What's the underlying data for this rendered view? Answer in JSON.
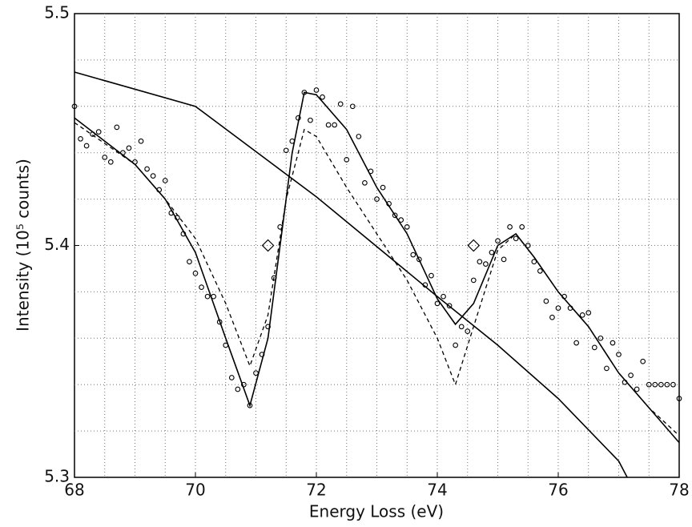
{
  "chart_data": {
    "type": "line",
    "xlabel": "Energy Loss (eV)",
    "ylabel": "Intensity (10⁵ counts)",
    "xlim": [
      68,
      78
    ],
    "ylim": [
      5.3,
      5.5
    ],
    "xticks": [
      68,
      70,
      72,
      74,
      76,
      78
    ],
    "yticks": [
      5.3,
      5.4,
      5.5
    ],
    "xgrid": [
      68.5,
      69,
      69.5,
      70,
      70.5,
      71,
      71.5,
      72,
      72.5,
      73,
      73.5,
      74,
      74.5,
      75,
      75.5,
      76,
      76.5,
      77,
      77.5
    ],
    "ygrid": [
      5.32,
      5.34,
      5.36,
      5.38,
      5.4,
      5.42,
      5.44,
      5.46,
      5.48
    ],
    "grid": true,
    "series": [
      {
        "color": "#000000",
        "line": "solid",
        "marker": "none",
        "x": [
          68,
          70,
          72,
          74,
          75,
          76,
          77,
          77.14
        ],
        "values": [
          5.4748,
          5.46,
          5.421,
          5.378,
          5.357,
          5.334,
          5.307,
          5.3
        ]
      },
      {
        "color": "#000000",
        "line": "solid",
        "marker": "none",
        "x": [
          68,
          69,
          69.5,
          70,
          70.5,
          70.9,
          71.2,
          71.4,
          71.6,
          71.8,
          72,
          72.5,
          73,
          73.5,
          74,
          74.3,
          74.6,
          75,
          75.3,
          75.6,
          76,
          76.5,
          77,
          77.5,
          78
        ],
        "values": [
          5.455,
          5.435,
          5.42,
          5.397,
          5.36,
          5.331,
          5.36,
          5.4,
          5.44,
          5.466,
          5.465,
          5.45,
          5.425,
          5.405,
          5.377,
          5.366,
          5.375,
          5.4,
          5.405,
          5.395,
          5.38,
          5.365,
          5.345,
          5.33,
          5.315
        ]
      },
      {
        "color": "#000000",
        "line": "dashed",
        "marker": "none",
        "x": [
          68,
          69,
          69.5,
          70,
          70.5,
          70.9,
          71.2,
          71.5,
          71.8,
          72,
          72.5,
          73,
          73.5,
          74,
          74.3,
          74.6,
          75,
          75.3,
          75.6,
          76,
          76.5,
          77,
          77.5,
          78
        ],
        "values": [
          5.453,
          5.435,
          5.42,
          5.403,
          5.375,
          5.348,
          5.37,
          5.42,
          5.45,
          5.447,
          5.425,
          5.405,
          5.385,
          5.36,
          5.34,
          5.365,
          5.398,
          5.405,
          5.395,
          5.38,
          5.365,
          5.345,
          5.33,
          5.318
        ]
      },
      {
        "color": "#000000",
        "line": "none",
        "marker": "circle",
        "x": [
          68.0,
          68.1,
          68.2,
          68.3,
          68.4,
          68.5,
          68.6,
          68.7,
          68.8,
          68.9,
          69.0,
          69.1,
          69.2,
          69.3,
          69.4,
          69.5,
          69.6,
          69.7,
          69.8,
          69.9,
          70.0,
          70.1,
          70.2,
          70.3,
          70.4,
          70.5,
          70.6,
          70.7,
          70.8,
          70.9,
          71.0,
          71.1,
          71.2,
          71.3,
          71.4,
          71.5,
          71.6,
          71.7,
          71.8,
          71.9,
          72.0,
          72.1,
          72.2,
          72.3,
          72.4,
          72.5,
          72.6,
          72.7,
          72.8,
          72.9,
          73.0,
          73.1,
          73.2,
          73.3,
          73.4,
          73.5,
          73.6,
          73.7,
          73.8,
          73.9,
          74.0,
          74.1,
          74.2,
          74.3,
          74.4,
          74.5,
          74.6,
          74.7,
          74.8,
          74.9,
          75.0,
          75.1,
          75.2,
          75.3,
          75.4,
          75.5,
          75.6,
          75.7,
          75.8,
          75.9,
          76.0,
          76.1,
          76.2,
          76.3,
          76.4,
          76.5,
          76.6,
          76.7,
          76.8,
          76.9,
          77.0,
          77.1,
          77.2,
          77.3,
          77.4,
          77.5,
          77.6,
          77.7,
          77.8,
          77.9,
          78.0
        ],
        "values": [
          5.46,
          5.446,
          5.443,
          5.448,
          5.449,
          5.438,
          5.436,
          5.451,
          5.44,
          5.442,
          5.436,
          5.445,
          5.433,
          5.43,
          5.424,
          5.428,
          5.414,
          5.412,
          5.405,
          5.393,
          5.388,
          5.382,
          5.378,
          5.378,
          5.367,
          5.357,
          5.343,
          5.338,
          5.34,
          5.331,
          5.345,
          5.353,
          5.365,
          5.386,
          5.408,
          5.441,
          5.445,
          5.455,
          5.466,
          5.454,
          5.467,
          5.464,
          5.452,
          5.452,
          5.461,
          5.437,
          5.46,
          5.447,
          5.427,
          5.432,
          5.42,
          5.425,
          5.418,
          5.413,
          5.411,
          5.408,
          5.396,
          5.394,
          5.383,
          5.387,
          5.375,
          5.378,
          5.374,
          5.357,
          5.365,
          5.363,
          5.385,
          5.393,
          5.392,
          5.397,
          5.402,
          5.394,
          5.408,
          5.403,
          5.408,
          5.4,
          5.393,
          5.389,
          5.376,
          5.369,
          5.373,
          5.378,
          5.373,
          5.358,
          5.37,
          5.371,
          5.356,
          5.36,
          5.347,
          5.358,
          5.353,
          5.341,
          5.344,
          5.338,
          5.35,
          5.34,
          5.34,
          5.34,
          5.34,
          5.34,
          5.334
        ]
      },
      {
        "color": "#000000",
        "line": "none",
        "marker": "diamond",
        "x": [
          71.2,
          74.6
        ],
        "values": [
          5.4,
          5.4
        ]
      }
    ]
  }
}
